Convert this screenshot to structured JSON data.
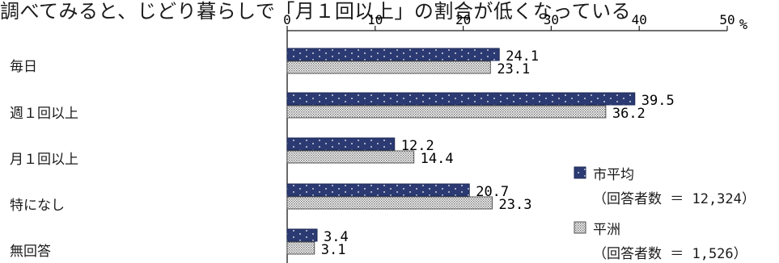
{
  "header_text": "調べてみると、じどり暮らしで「月１回以上」の割合が低くなっている",
  "unit_label": "%",
  "chart_data": {
    "type": "bar",
    "orientation": "horizontal",
    "categories": [
      "毎日",
      "週１回以上",
      "月１回以上",
      "特になし",
      "無回答"
    ],
    "series": [
      {
        "name": "市平均",
        "sub": "（回答者数 ＝ 12,324）",
        "values": [
          24.1,
          39.5,
          12.2,
          20.7,
          3.4
        ],
        "color": "#2b3a72"
      },
      {
        "name": "平洲",
        "sub": "（回答者数 ＝ 1,526）",
        "values": [
          23.1,
          36.2,
          14.4,
          23.3,
          3.1
        ],
        "color": "#c9c9c9"
      }
    ],
    "xticks": [
      "0",
      "10",
      "20",
      "30",
      "40",
      "50"
    ],
    "xlim": [
      0,
      50
    ],
    "value_labels": [
      [
        "24.1",
        "39.5",
        "12.2",
        "20.7",
        "3.4"
      ],
      [
        "23.1",
        "36.2",
        "14.4",
        "23.3",
        "3.1"
      ]
    ],
    "grid": false,
    "legend_position": "right"
  }
}
